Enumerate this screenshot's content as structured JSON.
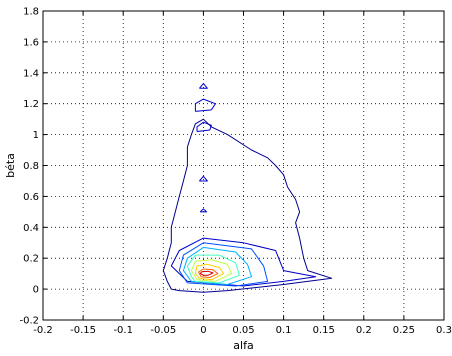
{
  "chart_data": {
    "type": "contour",
    "xlabel": "alfa",
    "ylabel": "béta",
    "xlim": [
      -0.2,
      0.3
    ],
    "ylim": [
      -0.2,
      1.8
    ],
    "x_ticks": [
      "-0.2",
      "-0.15",
      "-0.1",
      "-0.05",
      "0",
      "0.05",
      "0.1",
      "0.15",
      "0.2",
      "0.25",
      "0.3"
    ],
    "y_ticks": [
      "-0.2",
      "0",
      "0.2",
      "0.4",
      "0.6",
      "0.8",
      "1",
      "1.2",
      "1.4",
      "1.6",
      "1.8"
    ],
    "grid": "dotted",
    "colormap": "jet",
    "contours": [
      {
        "level": 1,
        "color": "#00008f",
        "points": [
          [
            -0.04,
            0.0
          ],
          [
            -0.03,
            -0.01
          ],
          [
            0.0,
            -0.02
          ],
          [
            0.03,
            -0.01
          ],
          [
            0.1,
            0.03
          ],
          [
            0.16,
            0.07
          ],
          [
            0.13,
            0.12
          ],
          [
            0.125,
            0.2
          ],
          [
            0.12,
            0.33
          ],
          [
            0.115,
            0.43
          ],
          [
            0.12,
            0.5
          ],
          [
            0.115,
            0.58
          ],
          [
            0.105,
            0.66
          ],
          [
            0.1,
            0.74
          ],
          [
            0.09,
            0.8
          ],
          [
            0.08,
            0.85
          ],
          [
            0.06,
            0.9
          ],
          [
            0.03,
            1.0
          ],
          [
            0.01,
            1.05
          ],
          [
            0.0,
            1.1
          ],
          [
            -0.01,
            1.07
          ],
          [
            -0.015,
            1.0
          ],
          [
            -0.02,
            0.92
          ],
          [
            -0.02,
            0.8
          ],
          [
            -0.025,
            0.7
          ],
          [
            -0.03,
            0.6
          ],
          [
            -0.035,
            0.5
          ],
          [
            -0.04,
            0.4
          ],
          [
            -0.04,
            0.3
          ],
          [
            -0.045,
            0.2
          ],
          [
            -0.05,
            0.12
          ],
          [
            -0.045,
            0.05
          ],
          [
            -0.04,
            0.0
          ]
        ]
      },
      {
        "level": 2,
        "color": "#0000c8",
        "points": [
          [
            -0.02,
            0.05
          ],
          [
            0.05,
            0.02
          ],
          [
            0.1,
            0.05
          ],
          [
            0.14,
            0.08
          ],
          [
            0.1,
            0.12
          ],
          [
            0.09,
            0.25
          ],
          [
            0.05,
            0.3
          ],
          [
            0.0,
            0.33
          ],
          [
            -0.03,
            0.25
          ],
          [
            -0.04,
            0.15
          ],
          [
            -0.02,
            0.05
          ]
        ]
      },
      {
        "level": 3,
        "color": "#0050ff",
        "points": [
          [
            -0.02,
            0.04
          ],
          [
            0.04,
            0.02
          ],
          [
            0.08,
            0.05
          ],
          [
            0.075,
            0.15
          ],
          [
            0.06,
            0.26
          ],
          [
            0.0,
            0.3
          ],
          [
            -0.025,
            0.22
          ],
          [
            -0.03,
            0.12
          ],
          [
            -0.02,
            0.04
          ]
        ]
      },
      {
        "level": 4,
        "color": "#00b0ff",
        "points": [
          [
            -0.015,
            0.05
          ],
          [
            0.03,
            0.03
          ],
          [
            0.06,
            0.08
          ],
          [
            0.055,
            0.16
          ],
          [
            0.04,
            0.24
          ],
          [
            0.0,
            0.27
          ],
          [
            -0.02,
            0.2
          ],
          [
            -0.025,
            0.12
          ],
          [
            -0.015,
            0.05
          ]
        ]
      },
      {
        "level": 5,
        "color": "#40ffc0",
        "points": [
          [
            -0.01,
            0.05
          ],
          [
            0.02,
            0.04
          ],
          [
            0.045,
            0.09
          ],
          [
            0.04,
            0.17
          ],
          [
            0.02,
            0.22
          ],
          [
            -0.01,
            0.22
          ],
          [
            -0.02,
            0.15
          ],
          [
            -0.015,
            0.08
          ],
          [
            -0.01,
            0.05
          ]
        ]
      },
      {
        "level": 6,
        "color": "#c0ff40",
        "points": [
          [
            -0.008,
            0.06
          ],
          [
            0.015,
            0.05
          ],
          [
            0.035,
            0.1
          ],
          [
            0.03,
            0.16
          ],
          [
            0.01,
            0.19
          ],
          [
            -0.01,
            0.18
          ],
          [
            -0.015,
            0.12
          ],
          [
            -0.008,
            0.06
          ]
        ]
      },
      {
        "level": 7,
        "color": "#ffd000",
        "points": [
          [
            -0.005,
            0.07
          ],
          [
            0.01,
            0.06
          ],
          [
            0.025,
            0.1
          ],
          [
            0.02,
            0.14
          ],
          [
            0.005,
            0.16
          ],
          [
            -0.008,
            0.15
          ],
          [
            -0.01,
            0.1
          ],
          [
            -0.005,
            0.07
          ]
        ]
      },
      {
        "level": 8,
        "color": "#ff6000",
        "points": [
          [
            -0.003,
            0.08
          ],
          [
            0.008,
            0.075
          ],
          [
            0.018,
            0.1
          ],
          [
            0.012,
            0.125
          ],
          [
            0.0,
            0.13
          ],
          [
            -0.006,
            0.11
          ],
          [
            -0.003,
            0.08
          ]
        ]
      },
      {
        "level": 9,
        "color": "#d00000",
        "points": [
          [
            0.0,
            0.09
          ],
          [
            0.006,
            0.09
          ],
          [
            0.012,
            0.105
          ],
          [
            0.006,
            0.115
          ],
          [
            -0.002,
            0.112
          ],
          [
            -0.004,
            0.1
          ],
          [
            0.0,
            0.09
          ]
        ]
      },
      {
        "level": 2,
        "color": "#0000c8",
        "points": [
          [
            -0.005,
            1.3
          ],
          [
            0.005,
            1.3
          ],
          [
            0.0,
            1.33
          ],
          [
            -0.005,
            1.3
          ]
        ]
      },
      {
        "level": 2,
        "color": "#0000c8",
        "points": [
          [
            -0.01,
            1.15
          ],
          [
            0.01,
            1.16
          ],
          [
            0.015,
            1.2
          ],
          [
            0.0,
            1.23
          ],
          [
            -0.01,
            1.2
          ],
          [
            -0.01,
            1.15
          ]
        ]
      },
      {
        "level": 2,
        "color": "#0000c8",
        "points": [
          [
            -0.008,
            1.02
          ],
          [
            0.008,
            1.03
          ],
          [
            0.01,
            1.06
          ],
          [
            0.0,
            1.08
          ],
          [
            -0.008,
            1.05
          ],
          [
            -0.008,
            1.02
          ]
        ]
      },
      {
        "level": 2,
        "color": "#0000c8",
        "points": [
          [
            -0.005,
            0.7
          ],
          [
            0.005,
            0.7
          ],
          [
            0.0,
            0.73
          ],
          [
            -0.005,
            0.7
          ]
        ]
      },
      {
        "level": 2,
        "color": "#0000c8",
        "points": [
          [
            -0.004,
            0.5
          ],
          [
            0.004,
            0.5
          ],
          [
            0.0,
            0.52
          ],
          [
            -0.004,
            0.5
          ]
        ]
      }
    ]
  }
}
